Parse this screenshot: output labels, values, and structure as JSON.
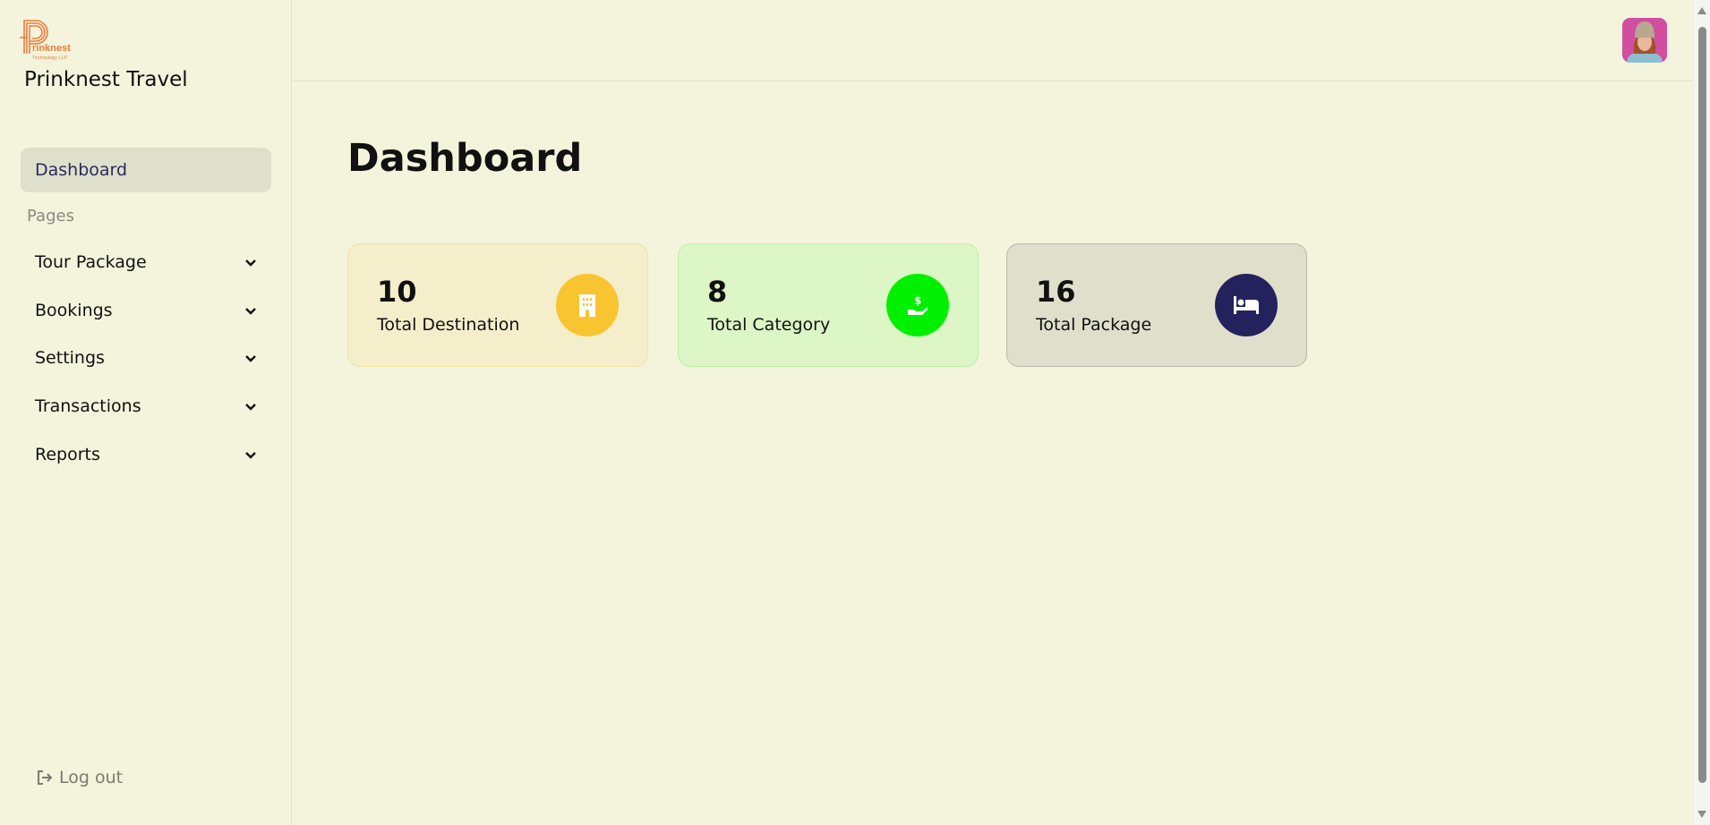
{
  "sidebar": {
    "logo_text": "Prinknest Technology LLP",
    "brand": "Prinknest Travel",
    "active_item": "Dashboard",
    "section_label": "Pages",
    "items": [
      {
        "label": "Tour Package"
      },
      {
        "label": "Bookings"
      },
      {
        "label": "Settings"
      },
      {
        "label": "Transactions"
      },
      {
        "label": "Reports"
      }
    ],
    "logout": "Log out"
  },
  "main": {
    "title": "Dashboard",
    "cards": [
      {
        "value": "10",
        "label": "Total Destination",
        "icon": "building-icon",
        "bg": "#f5eecb",
        "border": "#f0e2a6",
        "icon_bg": "#f8c430"
      },
      {
        "value": "8",
        "label": "Total Category",
        "icon": "hand-dollar-icon",
        "bg": "#dcf6c6",
        "border": "#b8f0a0",
        "icon_bg": "#00f000"
      },
      {
        "value": "16",
        "label": "Total Package",
        "icon": "bed-icon",
        "bg": "#dfdfcc",
        "border": "#b8b8ac",
        "icon_bg": "#24225c"
      }
    ]
  }
}
